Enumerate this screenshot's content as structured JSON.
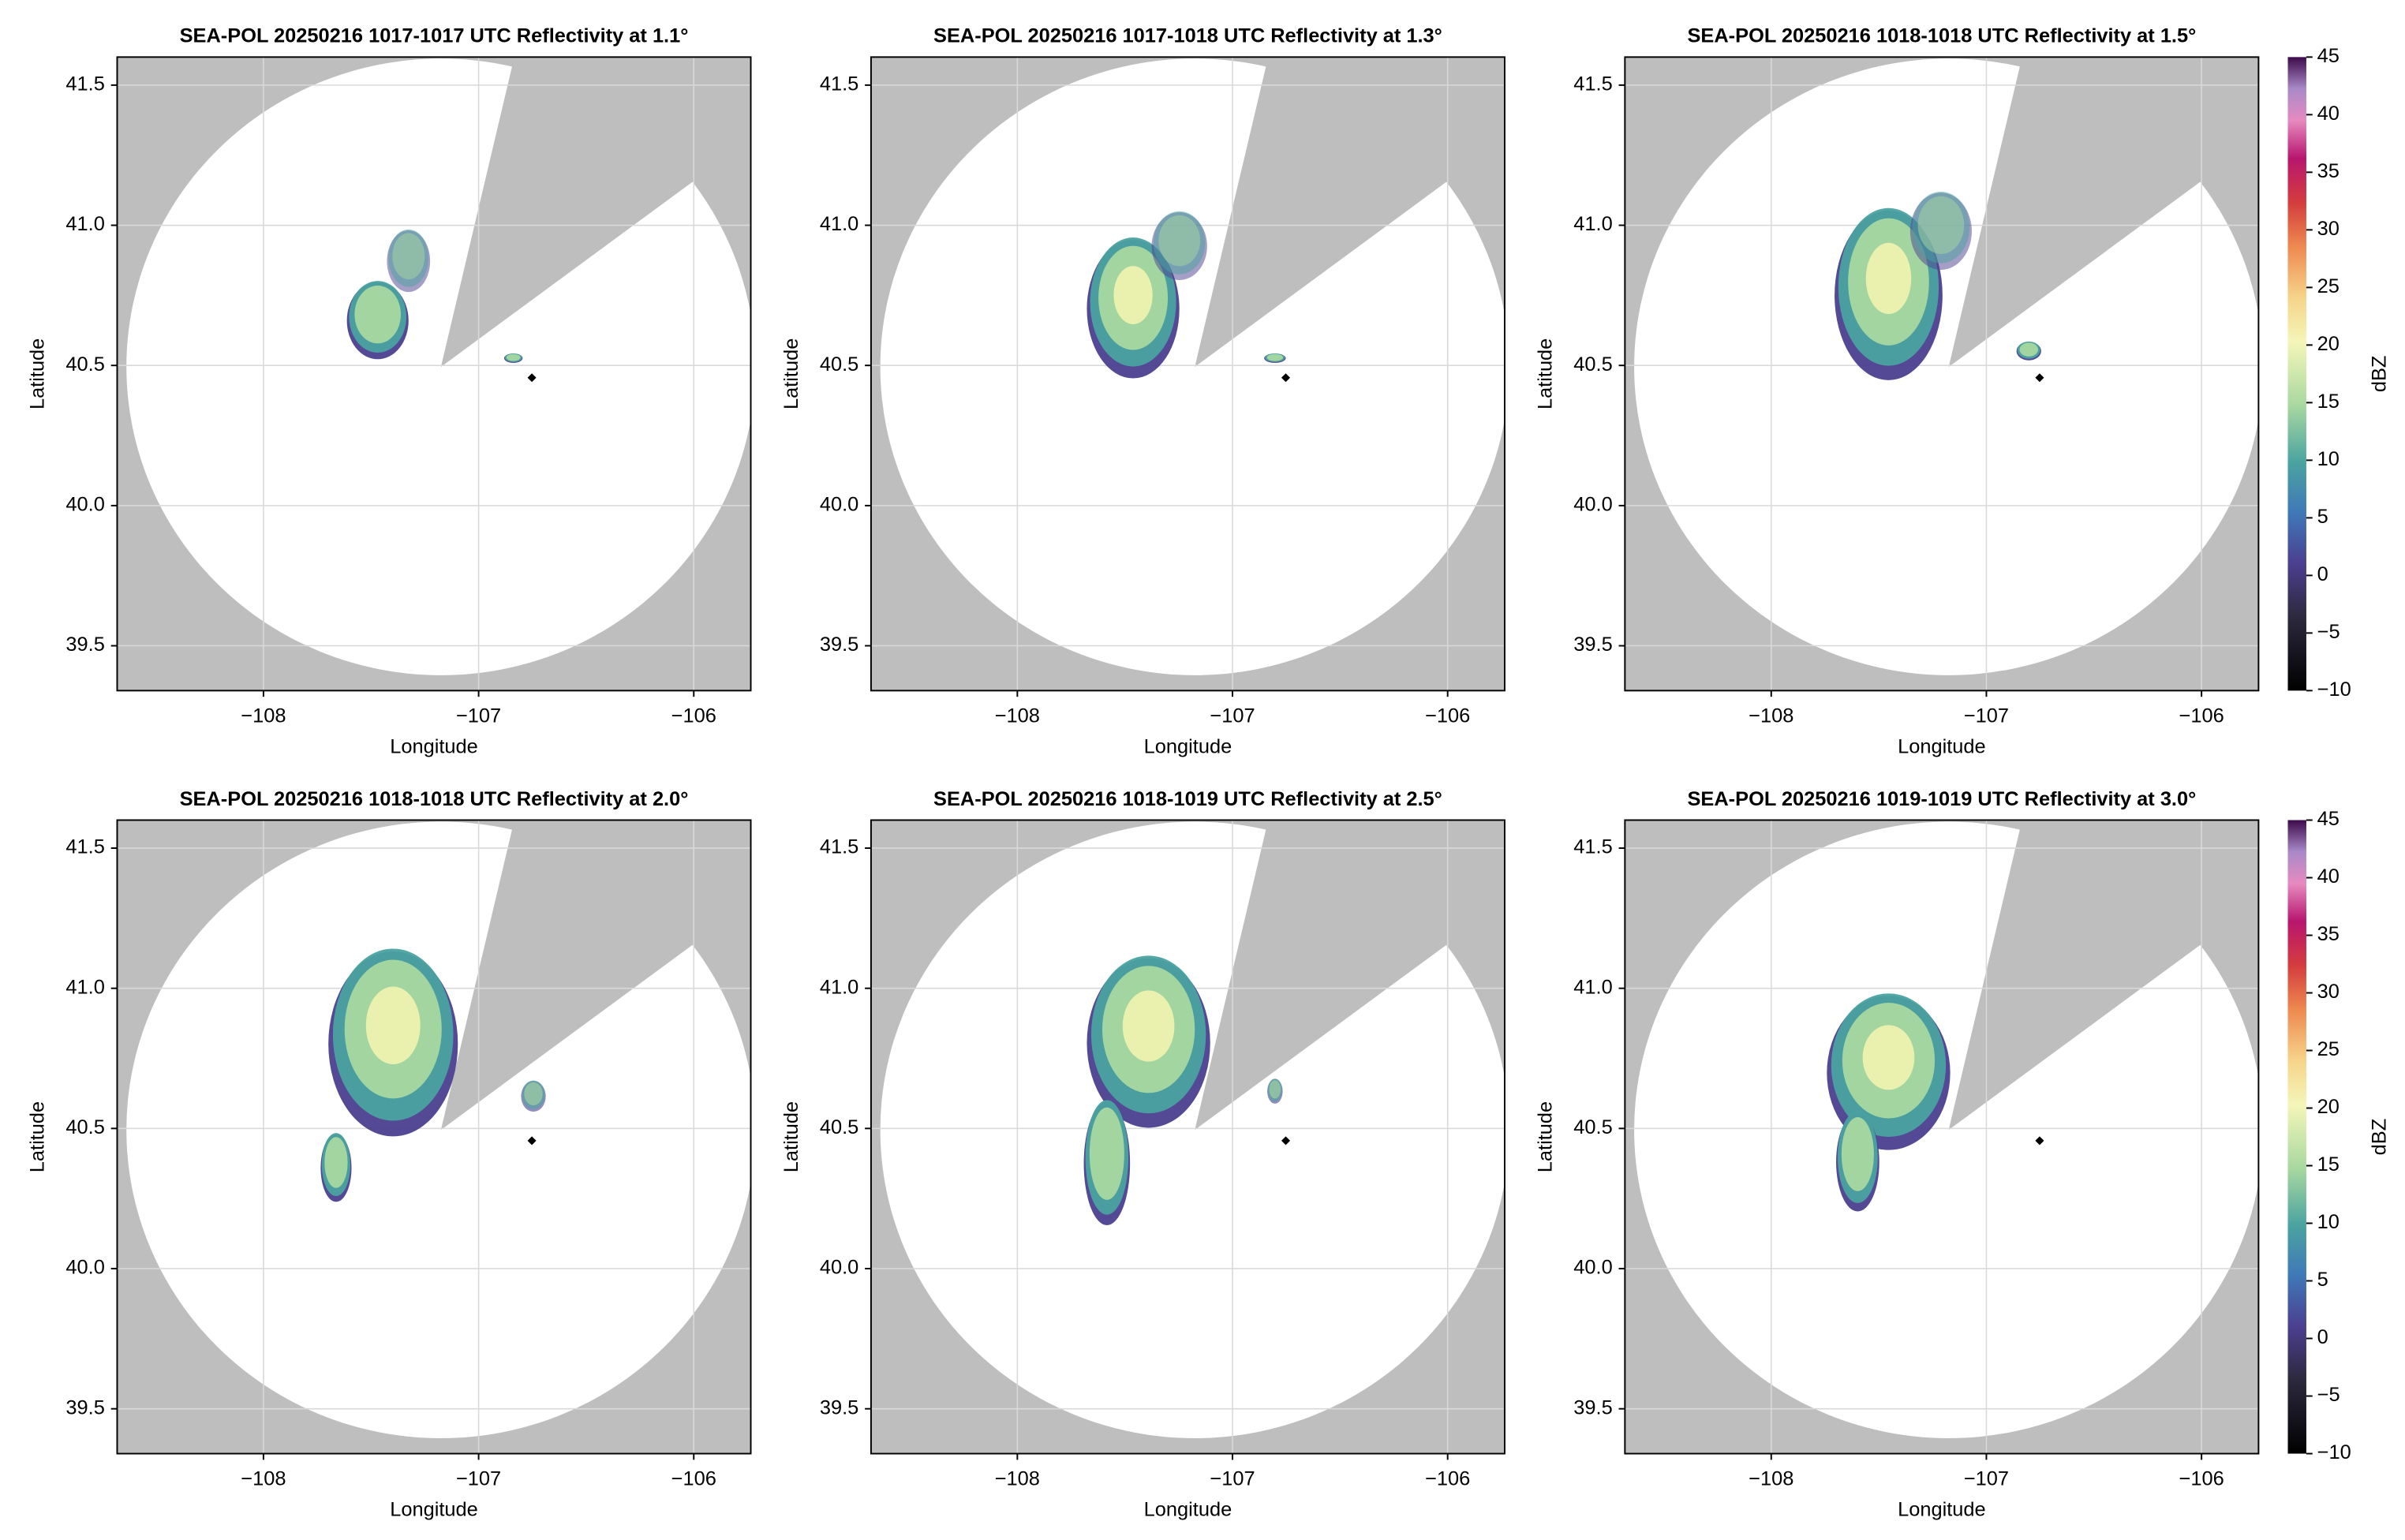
{
  "chart_data": [
    {
      "type": "ppi",
      "title": "SEA-POL 20250216 1017-1017 UTC Reflectivity at 1.1°",
      "xlabel": "Longitude",
      "ylabel": "Latitude",
      "xlim": [
        -108.68,
        -105.735
      ],
      "ylim": [
        39.34,
        41.6
      ],
      "xticks": [
        {
          "value": -108,
          "label": "−108"
        },
        {
          "value": -107,
          "label": "−107"
        },
        {
          "value": -106,
          "label": "−106"
        }
      ],
      "yticks": [
        39.5,
        {
          "value": 40,
          "label": "40.0"
        },
        40.5,
        {
          "value": 41,
          "label": "41.0"
        },
        41.5
      ],
      "grid": true
    },
    {
      "type": "ppi",
      "title": "SEA-POL 20250216 1017-1018 UTC Reflectivity at 1.3°",
      "xlabel": "Longitude",
      "ylabel": "Latitude",
      "xlim": [
        -108.68,
        -105.735
      ],
      "ylim": [
        39.34,
        41.6
      ],
      "xticks": [
        {
          "value": -108,
          "label": "−108"
        },
        {
          "value": -107,
          "label": "−107"
        },
        {
          "value": -106,
          "label": "−106"
        }
      ],
      "yticks": [
        39.5,
        {
          "value": 40,
          "label": "40.0"
        },
        40.5,
        {
          "value": 41,
          "label": "41.0"
        },
        41.5
      ],
      "grid": true
    },
    {
      "type": "ppi",
      "title": "SEA-POL 20250216 1018-1018 UTC Reflectivity at 1.5°",
      "xlabel": "Longitude",
      "ylabel": "Latitude",
      "xlim": [
        -108.68,
        -105.735
      ],
      "ylim": [
        39.34,
        41.6
      ],
      "xticks": [
        {
          "value": -108,
          "label": "−108"
        },
        {
          "value": -107,
          "label": "−107"
        },
        {
          "value": -106,
          "label": "−106"
        }
      ],
      "yticks": [
        39.5,
        {
          "value": 40,
          "label": "40.0"
        },
        40.5,
        {
          "value": 41,
          "label": "41.0"
        },
        41.5
      ],
      "grid": true,
      "colorbar": {
        "label": "dBZ",
        "lim": [
          -10,
          45
        ],
        "ticks": [
          {
            "value": -10,
            "label": "−10"
          },
          {
            "value": -5,
            "label": "−5"
          },
          0,
          5,
          10,
          15,
          20,
          25,
          30,
          35,
          40,
          45
        ]
      }
    },
    {
      "type": "ppi",
      "title": "SEA-POL 20250216 1018-1018 UTC Reflectivity at 2.0°",
      "xlabel": "Longitude",
      "ylabel": "Latitude",
      "xlim": [
        -108.68,
        -105.735
      ],
      "ylim": [
        39.34,
        41.6
      ],
      "xticks": [
        {
          "value": -108,
          "label": "−108"
        },
        {
          "value": -107,
          "label": "−107"
        },
        {
          "value": -106,
          "label": "−106"
        }
      ],
      "yticks": [
        39.5,
        {
          "value": 40,
          "label": "40.0"
        },
        40.5,
        {
          "value": 41,
          "label": "41.0"
        },
        41.5
      ],
      "grid": true
    },
    {
      "type": "ppi",
      "title": "SEA-POL 20250216 1018-1019 UTC Reflectivity at 2.5°",
      "xlabel": "Longitude",
      "ylabel": "Latitude",
      "xlim": [
        -108.68,
        -105.735
      ],
      "ylim": [
        39.34,
        41.6
      ],
      "xticks": [
        {
          "value": -108,
          "label": "−108"
        },
        {
          "value": -107,
          "label": "−107"
        },
        {
          "value": -106,
          "label": "−106"
        }
      ],
      "yticks": [
        39.5,
        {
          "value": 40,
          "label": "40.0"
        },
        40.5,
        {
          "value": 41,
          "label": "41.0"
        },
        41.5
      ],
      "grid": true
    },
    {
      "type": "ppi",
      "title": "SEA-POL 20250216 1019-1019 UTC Reflectivity at 3.0°",
      "xlabel": "Longitude",
      "ylabel": "Latitude",
      "xlim": [
        -108.68,
        -105.735
      ],
      "ylim": [
        39.34,
        41.6
      ],
      "xticks": [
        {
          "value": -108,
          "label": "−108"
        },
        {
          "value": -107,
          "label": "−107"
        },
        {
          "value": -106,
          "label": "−106"
        }
      ],
      "yticks": [
        39.5,
        {
          "value": 40,
          "label": "40.0"
        },
        40.5,
        {
          "value": 41,
          "label": "41.0"
        },
        41.5
      ],
      "grid": true,
      "colorbar": {
        "label": "dBZ",
        "lim": [
          -10,
          45
        ],
        "ticks": [
          {
            "value": -10,
            "label": "−10"
          },
          {
            "value": -5,
            "label": "−5"
          },
          0,
          5,
          10,
          15,
          20,
          25,
          30,
          35,
          40,
          45
        ]
      }
    }
  ]
}
